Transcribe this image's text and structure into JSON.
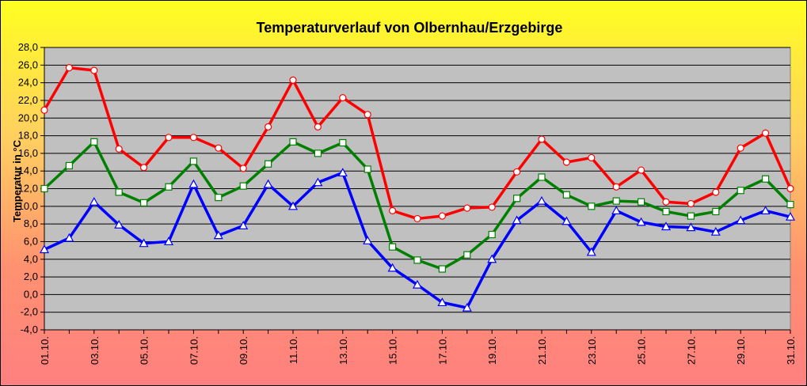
{
  "chart_data": {
    "type": "line",
    "title": "Temperaturverlauf von Olbernhau/Erzgebirge",
    "ylabel": "Temperatur in °C",
    "xlabel": "",
    "ylim": [
      -4,
      28
    ],
    "ytick_step": 2,
    "grid": true,
    "legend": "none",
    "plot_background": "#c0c0c0",
    "categories": [
      "01.10.",
      "02.10.",
      "03.10.",
      "04.10.",
      "05.10.",
      "06.10.",
      "07.10.",
      "08.10.",
      "09.10.",
      "10.10.",
      "11.10.",
      "12.10.",
      "13.10.",
      "14.10.",
      "15.10.",
      "16.10.",
      "17.10.",
      "18.10.",
      "19.10.",
      "20.10.",
      "21.10.",
      "22.10.",
      "23.10.",
      "24.10.",
      "25.10.",
      "26.10.",
      "27.10.",
      "28.10.",
      "29.10.",
      "30.10.",
      "31.10."
    ],
    "x_tick_labels": [
      "01.10.",
      "03.10.",
      "05.10.",
      "07.10.",
      "09.10.",
      "11.10.",
      "13.10.",
      "15.10.",
      "17.10.",
      "19.10.",
      "21.10.",
      "23.10.",
      "25.10.",
      "27.10.",
      "29.10.",
      "31.10."
    ],
    "y_tick_labels": [
      "-4,0",
      "-2,0",
      "0,0",
      "2,0",
      "4,0",
      "6,0",
      "8,0",
      "10,0",
      "12,0",
      "14,0",
      "16,0",
      "18,0",
      "20,0",
      "22,0",
      "24,0",
      "26,0",
      "28,0"
    ],
    "series": [
      {
        "color": "#ff0000",
        "marker": "circle",
        "values": [
          20.9,
          25.7,
          25.4,
          16.5,
          14.4,
          17.8,
          17.8,
          16.6,
          14.3,
          19.0,
          24.3,
          19.0,
          22.3,
          20.4,
          9.5,
          8.6,
          8.9,
          9.8,
          9.9,
          13.9,
          17.6,
          15.0,
          15.5,
          12.2,
          14.1,
          10.5,
          10.3,
          11.6,
          16.6,
          18.3,
          12.0
        ]
      },
      {
        "color": "#008000",
        "marker": "square",
        "values": [
          12.0,
          14.6,
          17.3,
          11.6,
          10.4,
          12.2,
          15.1,
          11.0,
          12.3,
          14.8,
          17.3,
          16.0,
          17.2,
          14.2,
          5.4,
          3.9,
          2.9,
          4.5,
          6.8,
          10.9,
          13.3,
          11.3,
          10.0,
          10.6,
          10.5,
          9.4,
          8.9,
          9.4,
          11.8,
          13.1,
          10.2
        ]
      },
      {
        "color": "#0000ff",
        "marker": "triangle",
        "values": [
          5.1,
          6.4,
          10.5,
          7.9,
          5.8,
          6.0,
          12.5,
          6.7,
          7.8,
          12.5,
          10.0,
          12.7,
          13.8,
          6.1,
          3.0,
          1.1,
          -0.9,
          -1.5,
          4.0,
          8.4,
          10.6,
          8.3,
          4.8,
          9.5,
          8.2,
          7.7,
          7.6,
          7.1,
          8.4,
          9.5,
          8.8
        ]
      }
    ]
  }
}
